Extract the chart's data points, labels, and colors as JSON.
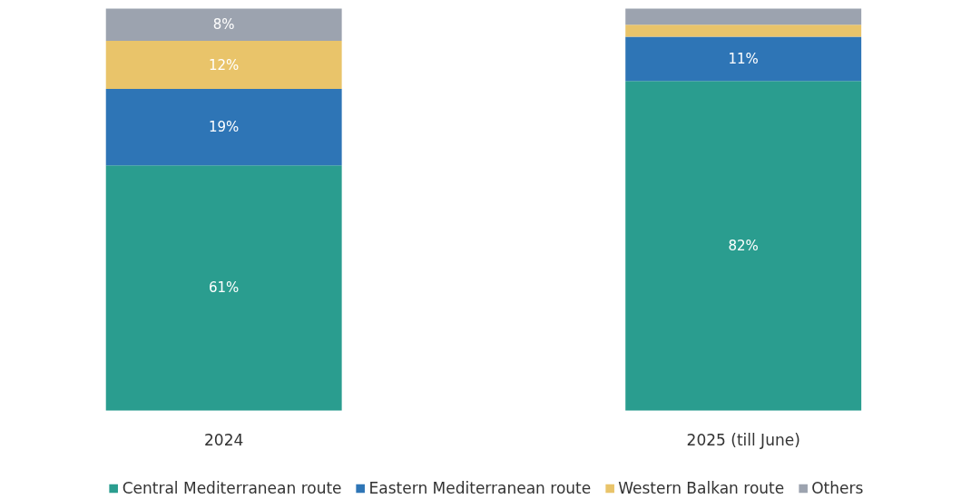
{
  "chart_data": {
    "type": "bar",
    "stacked": true,
    "categories": [
      "2024",
      "2025 (till June)"
    ],
    "legend": "bottom",
    "grid": false,
    "series": [
      {
        "name": "Central Mediterranean route",
        "color": "#2a9d8f",
        "values": [
          61,
          82
        ],
        "value_labels": [
          "61%",
          "82%"
        ]
      },
      {
        "name": "Eastern Mediterranean route",
        "color": "#2e75b6",
        "values": [
          19,
          11
        ],
        "value_labels": [
          "19%",
          "11%"
        ]
      },
      {
        "name": "Western Balkan route",
        "color": "#e9c46a",
        "values": [
          12,
          3
        ],
        "value_labels": [
          "12%",
          null
        ]
      },
      {
        "name": "Others",
        "color": "#9ca3af",
        "values": [
          8,
          4
        ],
        "value_labels": [
          "8%",
          null
        ]
      }
    ]
  }
}
